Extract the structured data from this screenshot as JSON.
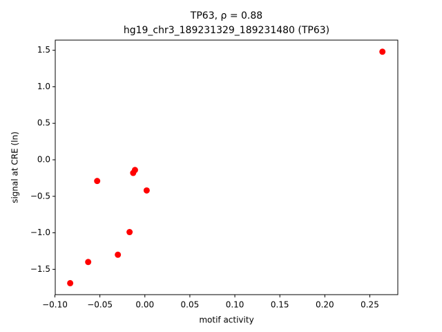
{
  "chart_data": {
    "type": "scatter",
    "title": "TP63, ρ = 0.88",
    "subtitle": "hg19_chr3_189231329_189231480 (TP63)",
    "x_label": "motif activity",
    "y_label": "signal at CRE (ln)",
    "color": "#ff0000",
    "x": [
      -0.083,
      -0.063,
      -0.053,
      -0.03,
      -0.017,
      -0.013,
      -0.011,
      0.002,
      0.264
    ],
    "values": [
      -1.69,
      -1.4,
      -0.29,
      -1.3,
      -0.99,
      -0.18,
      -0.14,
      -0.42,
      1.48
    ],
    "xlim": [
      -0.0996,
      0.2811
    ],
    "ylim": [
      -1.847,
      1.639
    ],
    "xticks": [
      {
        "value": -0.1,
        "label": "−0.10"
      },
      {
        "value": -0.05,
        "label": "−0.05"
      },
      {
        "value": 0,
        "label": "0.00"
      },
      {
        "value": 0.05,
        "label": "0.05"
      },
      {
        "value": 0.1,
        "label": "0.10"
      },
      {
        "value": 0.15,
        "label": "0.15"
      },
      {
        "value": 0.2,
        "label": "0.20"
      },
      {
        "value": 0.25,
        "label": "0.25"
      }
    ],
    "yticks": [
      {
        "value": -1.5,
        "label": "−1.5"
      },
      {
        "value": -1,
        "label": "−1.0"
      },
      {
        "value": -0.5,
        "label": "−0.5"
      },
      {
        "value": 0,
        "label": "0.0"
      },
      {
        "value": 0.5,
        "label": "0.5"
      },
      {
        "value": 1,
        "label": "1.0"
      },
      {
        "value": 1.5,
        "label": "1.5"
      }
    ]
  }
}
